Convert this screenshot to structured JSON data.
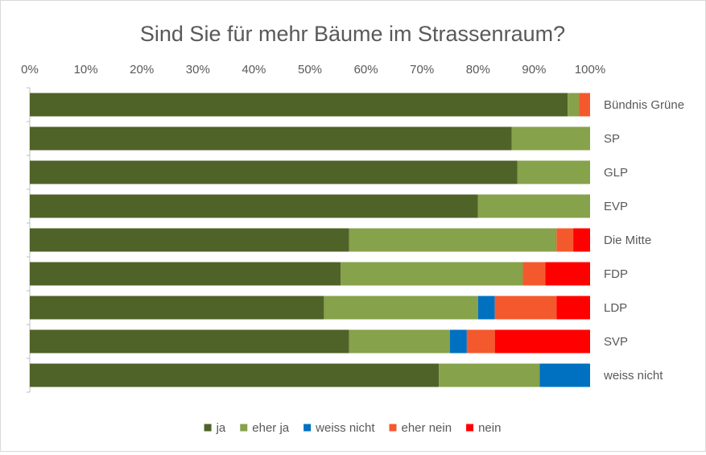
{
  "chart_data": {
    "type": "bar",
    "orientation": "horizontal",
    "stacked": true,
    "percent_stacked": true,
    "title": "Sind Sie für mehr Bäume im Strassenraum?",
    "xlabel": "",
    "ylabel": "",
    "xlim": [
      0,
      100
    ],
    "x_ticks": [
      "0%",
      "10%",
      "20%",
      "30%",
      "40%",
      "50%",
      "60%",
      "70%",
      "80%",
      "90%",
      "100%"
    ],
    "x_axis_position": "top",
    "category_labels_position": "right",
    "legend_position": "bottom",
    "grid": false,
    "categories": [
      "Bündnis Grüne",
      "SP",
      "GLP",
      "EVP",
      "Die Mitte",
      "FDP",
      "LDP",
      "SVP",
      "weiss nicht"
    ],
    "series": [
      {
        "name": "ja",
        "color": "#4f6228",
        "values": [
          96,
          86,
          87,
          80,
          57,
          55.5,
          52.5,
          57,
          73
        ]
      },
      {
        "name": "eher ja",
        "color": "#86a24a",
        "values": [
          2,
          14,
          13,
          20,
          37,
          32.5,
          27.5,
          18,
          18
        ]
      },
      {
        "name": "weiss nicht",
        "color": "#0070c0",
        "values": [
          0,
          0,
          0,
          0,
          0,
          0,
          3,
          3,
          9
        ]
      },
      {
        "name": "eher nein",
        "color": "#f4592e",
        "values": [
          2,
          0,
          0,
          0,
          3,
          4,
          11,
          5,
          0
        ]
      },
      {
        "name": "nein",
        "color": "#ff0000",
        "values": [
          0,
          0,
          0,
          0,
          3,
          8,
          6,
          17,
          0
        ]
      }
    ]
  }
}
